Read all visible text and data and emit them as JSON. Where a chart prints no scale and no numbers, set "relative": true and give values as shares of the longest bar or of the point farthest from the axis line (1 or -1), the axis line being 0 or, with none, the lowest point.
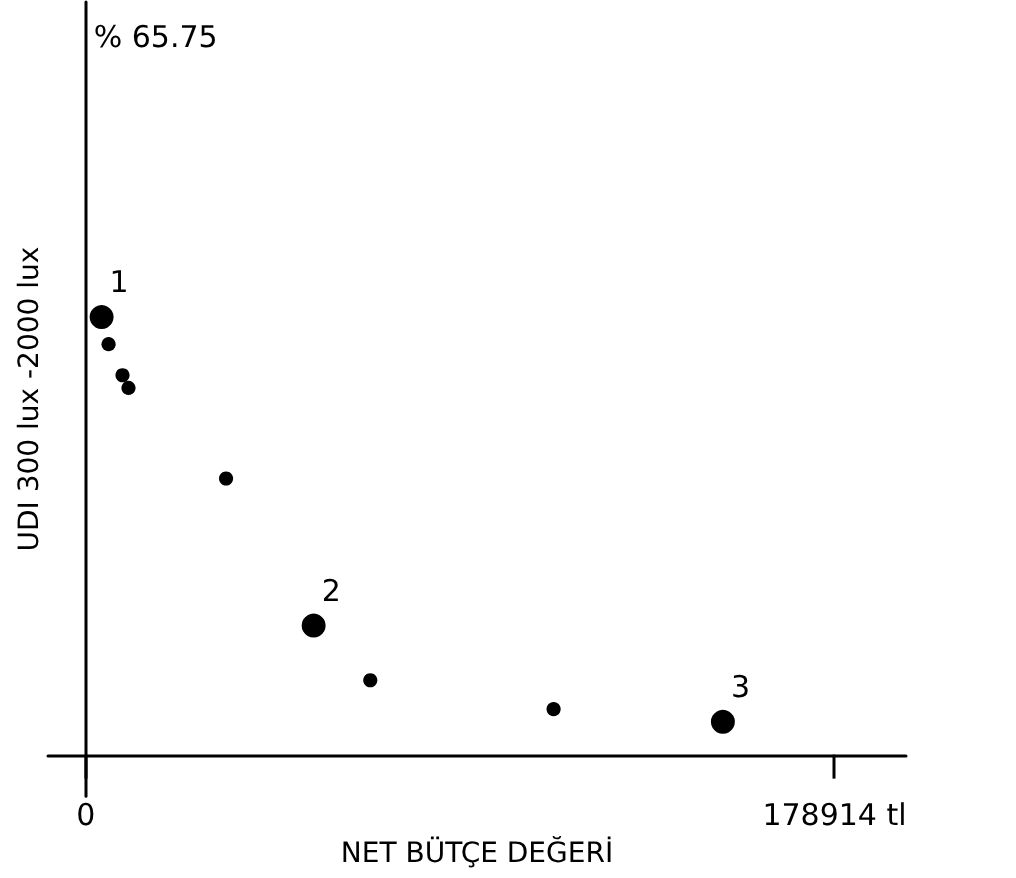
{
  "chart_data": {
    "type": "bubble",
    "xlabel": "NET BÜTÇE DEĞERİ",
    "ylabel": "UDI 300 lux -2000 lux",
    "x": [
      3806,
      5470,
      8800,
      10230,
      33540,
      54470,
      68000,
      111800,
      152250
    ],
    "values": [
      1,
      0.938,
      0.867,
      0.838,
      0.631,
      0.295,
      0.17,
      0.104,
      0.075
    ],
    "sizes": [
      1,
      0.35,
      0.35,
      0.35,
      0.35,
      1,
      0.35,
      0.35,
      1
    ],
    "color": "#000000",
    "relative": true,
    "xlim": [
      -9000,
      196000
    ],
    "xticks": [
      {
        "value": 0,
        "label": "0"
      },
      {
        "value": 178914,
        "label": "178914 tl"
      }
    ],
    "annotations": [
      "% 65.75",
      {
        "text": "1",
        "x": 3806,
        "y": 1
      },
      {
        "text": "2",
        "x": 54470,
        "y": 0.295
      },
      {
        "text": "3",
        "x": 152250,
        "y": 0.075
      }
    ]
  }
}
